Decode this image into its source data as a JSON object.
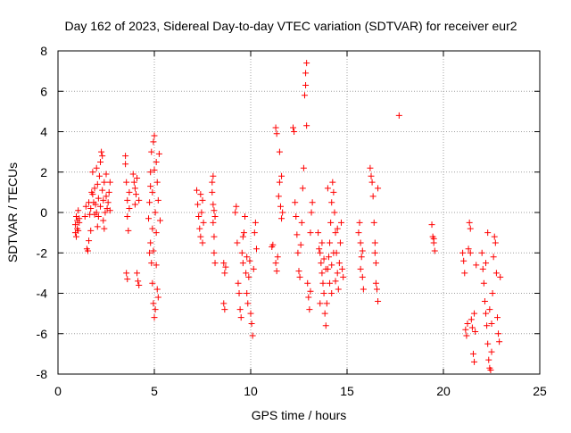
{
  "chart_data": {
    "type": "scatter",
    "title": "Day 162 of 2023, Sidereal Day-to-day VTEC variation (SDTVAR) for receiver eur2",
    "xlabel": "GPS time / hours",
    "ylabel": "SDTVAR / TECUs",
    "xlim": [
      0,
      25
    ],
    "ylim": [
      -8,
      8
    ],
    "xticks": [
      0,
      5,
      10,
      15,
      20,
      25
    ],
    "yticks": [
      -8,
      -6,
      -4,
      -2,
      0,
      2,
      4,
      6,
      8
    ],
    "grid": true,
    "marker": "+",
    "series": [
      {
        "name": "SDTVAR",
        "color": "#ff0000",
        "points": [
          [
            0.9,
            -1.0
          ],
          [
            0.9,
            -0.6
          ],
          [
            0.95,
            -0.2
          ],
          [
            1.0,
            -0.8
          ],
          [
            1.0,
            -0.4
          ],
          [
            1.05,
            0.1
          ],
          [
            1.05,
            -0.9
          ],
          [
            1.1,
            -0.5
          ],
          [
            0.95,
            -1.2
          ],
          [
            1.1,
            -0.3
          ],
          [
            1.4,
            -0.2
          ],
          [
            1.45,
            0.3
          ],
          [
            1.5,
            -1.8
          ],
          [
            1.55,
            -1.9
          ],
          [
            1.6,
            -1.4
          ],
          [
            1.6,
            0.5
          ],
          [
            1.65,
            -0.1
          ],
          [
            1.7,
            0.2
          ],
          [
            1.7,
            -0.9
          ],
          [
            1.75,
            1.0
          ],
          [
            1.8,
            2.0
          ],
          [
            1.8,
            0.9
          ],
          [
            1.85,
            0.5
          ],
          [
            1.9,
            -0.1
          ],
          [
            1.9,
            1.2
          ],
          [
            1.95,
            0.4
          ],
          [
            2.0,
            0.0
          ],
          [
            2.0,
            2.2
          ],
          [
            2.05,
            1.4
          ],
          [
            2.05,
            -0.7
          ],
          [
            2.1,
            0.7
          ],
          [
            2.1,
            -0.2
          ],
          [
            2.15,
            1.8
          ],
          [
            2.2,
            2.5
          ],
          [
            2.2,
            0.3
          ],
          [
            2.25,
            3.0
          ],
          [
            2.3,
            2.8
          ],
          [
            2.3,
            1.1
          ],
          [
            2.35,
            0.6
          ],
          [
            2.35,
            -0.4
          ],
          [
            2.4,
            1.5
          ],
          [
            2.4,
            -0.8
          ],
          [
            2.45,
            0.0
          ],
          [
            2.5,
            0.8
          ],
          [
            2.5,
            1.9
          ],
          [
            2.55,
            0.2
          ],
          [
            2.6,
            0.5
          ],
          [
            2.65,
            1.0
          ],
          [
            2.7,
            1.5
          ],
          [
            2.7,
            0.1
          ],
          [
            3.5,
            2.8
          ],
          [
            3.5,
            2.4
          ],
          [
            3.55,
            1.5
          ],
          [
            3.6,
            0.6
          ],
          [
            3.6,
            -0.2
          ],
          [
            3.65,
            -0.9
          ],
          [
            3.55,
            -3.0
          ],
          [
            3.6,
            -3.3
          ],
          [
            3.7,
            0.2
          ],
          [
            3.7,
            1.0
          ],
          [
            3.9,
            1.9
          ],
          [
            3.95,
            1.5
          ],
          [
            4.0,
            1.2
          ],
          [
            4.0,
            0.4
          ],
          [
            4.05,
            0.9
          ],
          [
            4.1,
            1.7
          ],
          [
            4.1,
            -3.0
          ],
          [
            4.15,
            -3.4
          ],
          [
            4.2,
            -3.6
          ],
          [
            4.2,
            0.6
          ],
          [
            4.7,
            -0.3
          ],
          [
            4.75,
            0.5
          ],
          [
            4.8,
            2.0
          ],
          [
            4.8,
            -1.5
          ],
          [
            4.85,
            3.0
          ],
          [
            4.85,
            -2.5
          ],
          [
            4.9,
            1.0
          ],
          [
            4.9,
            -3.5
          ],
          [
            4.95,
            3.5
          ],
          [
            4.95,
            -4.5
          ],
          [
            5.0,
            3.8
          ],
          [
            5.0,
            -5.2
          ],
          [
            5.05,
            0.0
          ],
          [
            5.05,
            -4.8
          ],
          [
            5.1,
            2.5
          ],
          [
            5.1,
            -1.0
          ],
          [
            5.15,
            1.5
          ],
          [
            5.15,
            -3.8
          ],
          [
            5.2,
            0.6
          ],
          [
            5.2,
            -4.2
          ],
          [
            5.25,
            2.9
          ],
          [
            5.3,
            -0.4
          ],
          [
            4.75,
            -2.0
          ],
          [
            4.8,
            1.3
          ],
          [
            4.9,
            -0.8
          ],
          [
            5.0,
            2.1
          ],
          [
            5.1,
            -2.6
          ],
          [
            4.95,
            -1.9
          ],
          [
            7.2,
            1.1
          ],
          [
            7.25,
            0.4
          ],
          [
            7.3,
            -0.2
          ],
          [
            7.35,
            -0.8
          ],
          [
            7.4,
            0.9
          ],
          [
            7.4,
            -1.2
          ],
          [
            7.45,
            0.0
          ],
          [
            7.5,
            -1.5
          ],
          [
            7.5,
            0.6
          ],
          [
            7.55,
            -0.5
          ],
          [
            8.0,
            1.5
          ],
          [
            8.0,
            1.0
          ],
          [
            8.05,
            0.4
          ],
          [
            8.05,
            -0.5
          ],
          [
            8.1,
            -1.2
          ],
          [
            8.1,
            -2.0
          ],
          [
            8.15,
            -2.5
          ],
          [
            8.15,
            -0.2
          ],
          [
            8.05,
            1.8
          ],
          [
            8.1,
            0.1
          ],
          [
            8.6,
            -2.5
          ],
          [
            8.65,
            -3.0
          ],
          [
            8.6,
            -4.5
          ],
          [
            8.65,
            -4.8
          ],
          [
            8.7,
            -2.7
          ],
          [
            9.2,
            0.0
          ],
          [
            9.25,
            0.3
          ],
          [
            9.3,
            -1.5
          ],
          [
            9.35,
            -3.5
          ],
          [
            9.4,
            -4.0
          ],
          [
            9.45,
            -4.8
          ],
          [
            9.5,
            -5.2
          ],
          [
            9.55,
            -2.0
          ],
          [
            9.6,
            -2.5
          ],
          [
            9.65,
            -1.0
          ],
          [
            9.7,
            -0.2
          ],
          [
            9.75,
            -3.0
          ],
          [
            9.8,
            -4.0
          ],
          [
            9.85,
            -4.5
          ],
          [
            9.9,
            -3.2
          ],
          [
            9.95,
            -2.4
          ],
          [
            10.0,
            -5.0
          ],
          [
            10.05,
            -5.5
          ],
          [
            10.1,
            -6.1
          ],
          [
            10.15,
            -2.8
          ],
          [
            10.2,
            -1.0
          ],
          [
            10.25,
            -0.5
          ],
          [
            10.3,
            -1.8
          ],
          [
            9.6,
            -1.2
          ],
          [
            9.8,
            -2.2
          ],
          [
            11.1,
            -1.7
          ],
          [
            11.15,
            -1.6
          ],
          [
            11.3,
            -2.5
          ],
          [
            11.35,
            -2.9
          ],
          [
            11.4,
            -2.2
          ],
          [
            11.45,
            0.8
          ],
          [
            11.5,
            1.5
          ],
          [
            11.55,
            0.3
          ],
          [
            11.3,
            4.2
          ],
          [
            11.35,
            3.9
          ],
          [
            11.6,
            1.8
          ],
          [
            11.65,
            0.0
          ],
          [
            11.6,
            -0.3
          ],
          [
            11.5,
            3.0
          ],
          [
            12.2,
            4.2
          ],
          [
            12.25,
            4.0
          ],
          [
            12.3,
            0.5
          ],
          [
            12.35,
            -0.2
          ],
          [
            12.4,
            -1.1
          ],
          [
            12.45,
            -2.0
          ],
          [
            12.5,
            -2.9
          ],
          [
            12.55,
            -3.2
          ],
          [
            12.6,
            -1.6
          ],
          [
            12.65,
            -0.5
          ],
          [
            12.7,
            1.2
          ],
          [
            12.75,
            2.2
          ],
          [
            12.8,
            5.8
          ],
          [
            12.85,
            6.3
          ],
          [
            12.9,
            7.4
          ],
          [
            12.85,
            6.9
          ],
          [
            12.9,
            4.3
          ],
          [
            12.95,
            -3.5
          ],
          [
            13.0,
            -4.2
          ],
          [
            13.05,
            -4.8
          ],
          [
            13.1,
            -3.9
          ],
          [
            13.15,
            0.0
          ],
          [
            13.2,
            0.5
          ],
          [
            13.1,
            -1.0
          ],
          [
            13.5,
            -1.0
          ],
          [
            13.55,
            -1.8
          ],
          [
            13.6,
            -2.0
          ],
          [
            13.65,
            -2.5
          ],
          [
            13.7,
            -3.0
          ],
          [
            13.75,
            -3.5
          ],
          [
            13.8,
            -4.0
          ],
          [
            13.85,
            -5.0
          ],
          [
            13.9,
            -5.6
          ],
          [
            13.95,
            -4.5
          ],
          [
            14.0,
            -2.8
          ],
          [
            14.05,
            -2.2
          ],
          [
            14.1,
            -1.5
          ],
          [
            14.15,
            -0.5
          ],
          [
            14.2,
            0.5
          ],
          [
            14.25,
            1.5
          ],
          [
            14.3,
            1.0
          ],
          [
            14.35,
            0.0
          ],
          [
            14.4,
            -1.0
          ],
          [
            14.45,
            -2.0
          ],
          [
            14.5,
            -3.0
          ],
          [
            14.55,
            -3.8
          ],
          [
            14.6,
            -2.5
          ],
          [
            14.65,
            -1.5
          ],
          [
            14.7,
            -0.5
          ],
          [
            14.75,
            -2.8
          ],
          [
            14.8,
            -3.2
          ],
          [
            13.7,
            -1.5
          ],
          [
            13.9,
            -2.8
          ],
          [
            14.1,
            -3.5
          ],
          [
            14.3,
            -2.0
          ],
          [
            14.5,
            -0.8
          ],
          [
            13.6,
            -4.5
          ],
          [
            14.2,
            -4.0
          ],
          [
            14.4,
            -3.4
          ],
          [
            14.0,
            1.2
          ],
          [
            14.2,
            -2.6
          ],
          [
            13.8,
            -2.3
          ],
          [
            15.6,
            -1.0
          ],
          [
            15.65,
            -0.5
          ],
          [
            15.7,
            -1.5
          ],
          [
            15.75,
            -2.2
          ],
          [
            15.8,
            -3.2
          ],
          [
            15.85,
            -3.8
          ],
          [
            15.7,
            -2.8
          ],
          [
            15.8,
            -1.9
          ],
          [
            16.2,
            2.2
          ],
          [
            16.25,
            1.8
          ],
          [
            16.3,
            1.5
          ],
          [
            16.35,
            0.8
          ],
          [
            16.4,
            -0.5
          ],
          [
            16.45,
            -1.5
          ],
          [
            16.5,
            -2.5
          ],
          [
            16.55,
            -3.8
          ],
          [
            16.6,
            -4.4
          ],
          [
            16.5,
            -3.5
          ],
          [
            16.45,
            -2.0
          ],
          [
            16.6,
            1.2
          ],
          [
            17.7,
            4.8
          ],
          [
            19.4,
            -0.6
          ],
          [
            19.45,
            -1.2
          ],
          [
            19.5,
            -1.5
          ],
          [
            19.55,
            -1.9
          ],
          [
            19.5,
            -1.3
          ],
          [
            21.0,
            -2.0
          ],
          [
            21.05,
            -2.4
          ],
          [
            21.1,
            -3.0
          ],
          [
            21.15,
            -5.8
          ],
          [
            21.2,
            -6.1
          ],
          [
            21.25,
            -5.5
          ],
          [
            21.3,
            -1.8
          ],
          [
            21.35,
            -0.5
          ],
          [
            21.4,
            -2.0
          ],
          [
            21.45,
            -5.3
          ],
          [
            21.5,
            -5.7
          ],
          [
            21.55,
            -7.0
          ],
          [
            21.6,
            -7.4
          ],
          [
            21.65,
            -5.9
          ],
          [
            21.7,
            -2.6
          ],
          [
            21.4,
            -0.8
          ],
          [
            21.6,
            -5.0
          ],
          [
            22.0,
            -2.0
          ],
          [
            22.05,
            -2.8
          ],
          [
            22.1,
            -3.5
          ],
          [
            22.15,
            -4.4
          ],
          [
            22.2,
            -5.0
          ],
          [
            22.25,
            -5.6
          ],
          [
            22.3,
            -6.5
          ],
          [
            22.35,
            -7.3
          ],
          [
            22.4,
            -7.7
          ],
          [
            22.45,
            -7.8
          ],
          [
            22.5,
            -6.9
          ],
          [
            22.55,
            -4.0
          ],
          [
            22.6,
            -2.2
          ],
          [
            22.65,
            -1.2
          ],
          [
            22.7,
            -1.5
          ],
          [
            22.75,
            -3.0
          ],
          [
            22.8,
            -5.2
          ],
          [
            22.85,
            -6.0
          ],
          [
            22.9,
            -6.4
          ],
          [
            22.95,
            -3.2
          ],
          [
            22.3,
            -1.0
          ],
          [
            22.4,
            -4.8
          ],
          [
            22.2,
            -2.5
          ],
          [
            22.5,
            -5.5
          ]
        ]
      }
    ]
  }
}
